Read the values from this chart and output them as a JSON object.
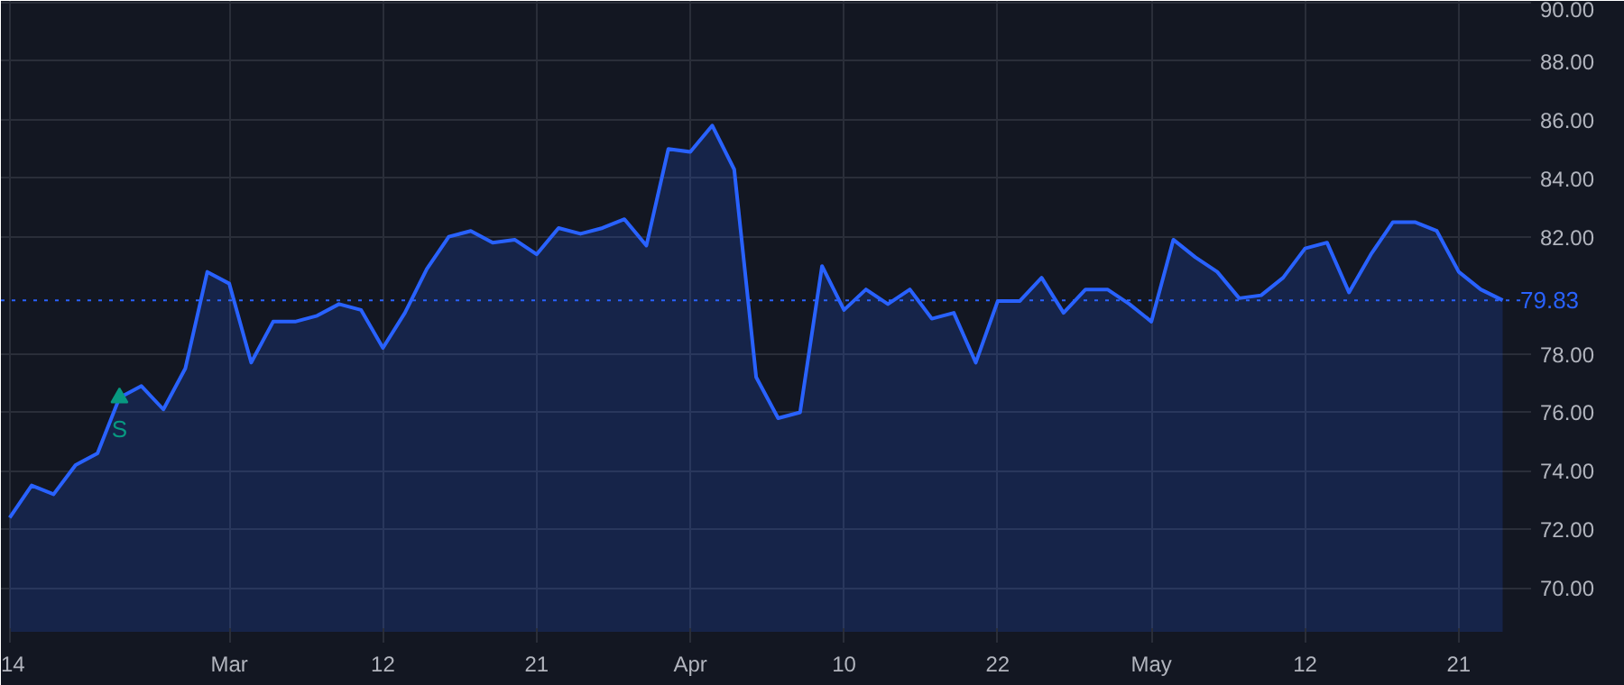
{
  "chart_data": {
    "type": "area",
    "categories": [
      "14",
      null,
      null,
      null,
      null,
      null,
      null,
      null,
      null,
      null,
      "Mar",
      null,
      null,
      null,
      null,
      null,
      null,
      "12",
      null,
      null,
      null,
      null,
      null,
      null,
      "21",
      null,
      null,
      null,
      null,
      null,
      null,
      "Apr",
      null,
      null,
      null,
      null,
      null,
      null,
      "10",
      null,
      null,
      null,
      null,
      null,
      null,
      "22",
      null,
      null,
      null,
      null,
      null,
      null,
      "May",
      null,
      null,
      null,
      null,
      null,
      null,
      "12",
      null,
      null,
      null,
      null,
      null,
      null,
      "21",
      null,
      null
    ],
    "series": [
      {
        "color": "#2962ff",
        "values": [
          72.4,
          73.5,
          73.2,
          74.2,
          74.6,
          76.5,
          76.9,
          76.1,
          77.5,
          80.8,
          80.4,
          77.7,
          79.1,
          79.1,
          79.3,
          79.7,
          79.5,
          78.2,
          79.4,
          80.9,
          82.0,
          82.2,
          81.8,
          81.9,
          81.4,
          82.3,
          82.1,
          82.3,
          82.6,
          81.7,
          85.0,
          84.9,
          85.8,
          84.3,
          77.2,
          75.8,
          76.0,
          81.0,
          79.5,
          80.2,
          79.7,
          80.2,
          79.2,
          79.4,
          77.7,
          79.8,
          79.8,
          80.6,
          79.4,
          80.2,
          80.2,
          79.7,
          79.1,
          81.9,
          81.3,
          80.8,
          79.9,
          80.0,
          80.6,
          81.6,
          81.8,
          80.1,
          81.4,
          82.5,
          82.5,
          82.2,
          80.8,
          80.2,
          79.83
        ]
      }
    ],
    "ylim": [
      68.5,
      90.06
    ],
    "yticks": [
      {
        "value": 70,
        "label": "70.00"
      },
      {
        "value": 72,
        "label": "72.00"
      },
      {
        "value": 74,
        "label": "74.00"
      },
      {
        "value": 76,
        "label": "76.00"
      },
      {
        "value": 78,
        "label": "78.00"
      },
      {
        "value": 82,
        "label": "82.00"
      },
      {
        "value": 84,
        "label": "84.00"
      },
      {
        "value": 86,
        "label": "86.00"
      },
      {
        "value": 88,
        "label": "88.00"
      },
      {
        "value": 90,
        "label": "90.00"
      }
    ],
    "ref_lines": [
      {
        "axis": "y",
        "value": 79.83,
        "label": "79.83",
        "color": "#2962ff",
        "line_style": "dotted"
      }
    ],
    "annotations": [
      {
        "text": "S",
        "y": 76.5
      }
    ],
    "grid": true,
    "marker": "none",
    "line_style": "solid"
  }
}
